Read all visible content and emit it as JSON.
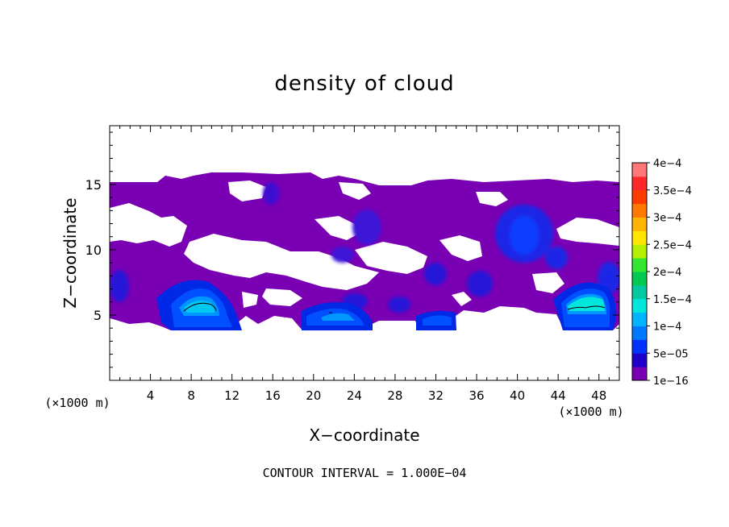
{
  "chart_data": {
    "type": "heatmap",
    "title": "density of cloud",
    "xlabel": "X−coordinate",
    "ylabel": "Z−coordinate",
    "x_unit_left": "(×1000 m)",
    "x_unit_right": "(×1000 m)",
    "footer": "CONTOUR INTERVAL = 1.000E−04",
    "xlim": [
      0,
      50
    ],
    "ylim": [
      0,
      19.5
    ],
    "x_ticks": [
      4,
      8,
      12,
      16,
      20,
      24,
      28,
      32,
      36,
      40,
      44,
      48
    ],
    "x_tick_labels": [
      "4",
      "8",
      "12",
      "16",
      "20",
      "24",
      "28",
      "32",
      "36",
      "40",
      "44",
      "48"
    ],
    "y_ticks": [
      5,
      10,
      15
    ],
    "y_tick_labels": [
      "5",
      "10",
      "15"
    ],
    "colorbar": {
      "range": [
        0,
        0.0004
      ],
      "tick_values": [
        0,
        5e-05,
        0.0001,
        0.00015,
        0.0002,
        0.00025,
        0.0003,
        0.00035,
        0.0004
      ],
      "tick_labels": [
        "1e−16",
        "5e−05",
        "1e−4",
        "1.5e−4",
        "2e−4",
        "2.5e−4",
        "3e−4",
        "3.5e−4",
        "4e−4"
      ],
      "colors": [
        "#7a00b4",
        "#1e00c8",
        "#0032ff",
        "#0078ff",
        "#00b4ff",
        "#00e6dc",
        "#00c8a0",
        "#00c850",
        "#32e632",
        "#b4f000",
        "#ffe600",
        "#ffb400",
        "#ff7800",
        "#ff3c00",
        "#ff2828",
        "#ff7878"
      ]
    },
    "regions": [
      {
        "level": "1e−16",
        "x_range": [
          0,
          50
        ],
        "z_range": [
          4.2,
          15.8
        ]
      },
      {
        "level": "5e−05",
        "x_range": [
          6,
          11.5
        ],
        "z_range": [
          4.2,
          7.5
        ]
      },
      {
        "level": "1e−4",
        "x_range": [
          7.5,
          10.5
        ],
        "z_range": [
          5.4,
          6.0
        ]
      },
      {
        "level": "5e−05",
        "x_range": [
          18.5,
          24
        ],
        "z_range": [
          4.4,
          6.2
        ]
      },
      {
        "level": "5e−05",
        "x_range": [
          30,
          33
        ],
        "z_range": [
          4.3,
          5.5
        ]
      },
      {
        "level": "5e−05",
        "x_range": [
          37,
          42
        ],
        "z_range": [
          9,
          13
        ]
      },
      {
        "level": "5e−05",
        "x_range": [
          44.5,
          49.5
        ],
        "z_range": [
          4.3,
          7.5
        ]
      },
      {
        "level": "1e−4",
        "x_range": [
          45,
          49
        ],
        "z_range": [
          5.4,
          6.6
        ]
      }
    ]
  }
}
